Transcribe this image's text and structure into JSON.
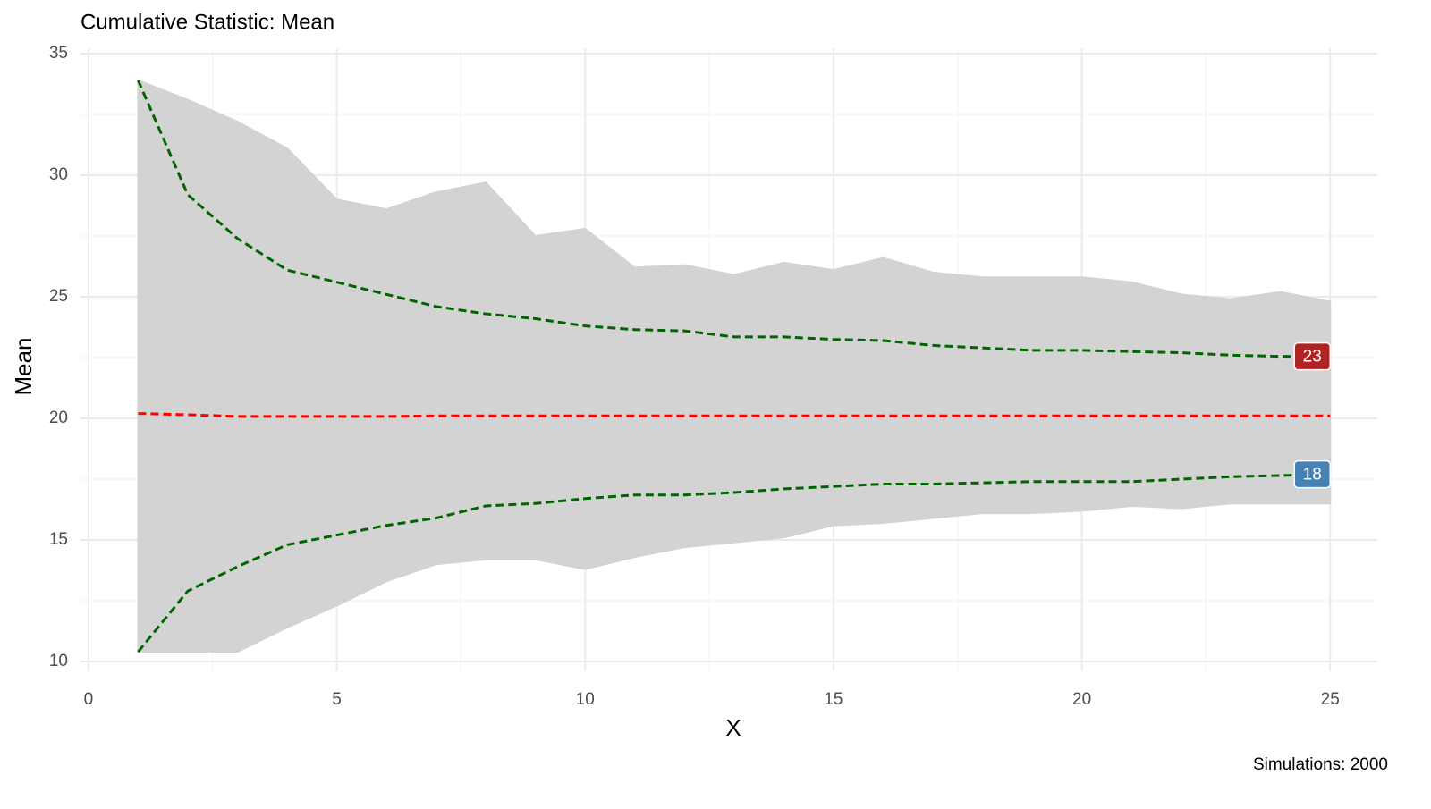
{
  "chart_data": {
    "type": "line",
    "title": "Cumulative Statistic: Mean",
    "x_label": "X",
    "y_label": "Mean",
    "caption": "Simulations: 2000",
    "x": [
      1,
      2,
      3,
      4,
      5,
      6,
      7,
      8,
      9,
      10,
      11,
      12,
      13,
      14,
      15,
      16,
      17,
      18,
      19,
      20,
      21,
      22,
      23,
      24,
      25
    ],
    "band": {
      "color": "#d3d3d3",
      "upper": [
        33.9,
        33.1,
        32.2,
        31.1,
        29.0,
        28.6,
        29.3,
        29.7,
        27.5,
        27.8,
        26.2,
        26.3,
        25.9,
        26.4,
        26.1,
        26.6,
        26.0,
        25.8,
        25.8,
        25.8,
        25.6,
        25.1,
        24.9,
        25.2,
        24.8
      ],
      "lower": [
        10.4,
        10.4,
        10.4,
        11.4,
        12.3,
        13.3,
        14.0,
        14.2,
        14.2,
        13.8,
        14.3,
        14.7,
        14.9,
        15.1,
        15.6,
        15.7,
        15.9,
        16.1,
        16.1,
        16.2,
        16.4,
        16.3,
        16.5,
        16.5,
        16.5
      ]
    },
    "series": [
      {
        "color": "#ff0000",
        "dashed": true,
        "values": [
          20.2,
          20.15,
          20.08,
          20.08,
          20.08,
          20.08,
          20.1,
          20.1,
          20.1,
          20.1,
          20.1,
          20.1,
          20.1,
          20.1,
          20.1,
          20.1,
          20.1,
          20.1,
          20.1,
          20.1,
          20.1,
          20.1,
          20.1,
          20.1,
          20.1
        ]
      },
      {
        "color": "#006400",
        "dashed": true,
        "label_fill": "#b22222",
        "values": [
          33.9,
          29.2,
          27.4,
          26.1,
          25.6,
          25.1,
          24.6,
          24.3,
          24.1,
          23.8,
          23.65,
          23.6,
          23.35,
          23.35,
          23.25,
          23.2,
          23.0,
          22.9,
          22.8,
          22.8,
          22.75,
          22.7,
          22.6,
          22.55,
          22.55
        ],
        "value_labels": [
          null,
          null,
          null,
          null,
          null,
          null,
          null,
          null,
          null,
          null,
          null,
          null,
          null,
          null,
          null,
          null,
          null,
          null,
          null,
          null,
          null,
          null,
          null,
          null,
          "23"
        ]
      },
      {
        "color": "#006400",
        "dashed": true,
        "label_fill": "#4682b4",
        "values": [
          10.4,
          12.9,
          13.9,
          14.8,
          15.2,
          15.6,
          15.9,
          16.4,
          16.5,
          16.7,
          16.85,
          16.85,
          16.95,
          17.1,
          17.2,
          17.3,
          17.3,
          17.35,
          17.4,
          17.4,
          17.4,
          17.5,
          17.6,
          17.65,
          17.7
        ],
        "value_labels": [
          null,
          null,
          null,
          null,
          null,
          null,
          null,
          null,
          null,
          null,
          null,
          null,
          null,
          null,
          null,
          null,
          null,
          null,
          null,
          null,
          null,
          null,
          null,
          null,
          "18"
        ]
      }
    ],
    "xlim": [
      -0.16,
      25.95
    ],
    "ylim": [
      9.6,
      35.2
    ],
    "xticks": [
      0,
      5,
      10,
      15,
      20,
      25
    ],
    "yticks": [
      10,
      15,
      20,
      25,
      30,
      35
    ],
    "minor_xticks": [
      2.5,
      7.5,
      12.5,
      17.5,
      22.5
    ],
    "minor_yticks": [
      12.5,
      17.5,
      22.5,
      27.5,
      32.5
    ],
    "grid": true
  }
}
